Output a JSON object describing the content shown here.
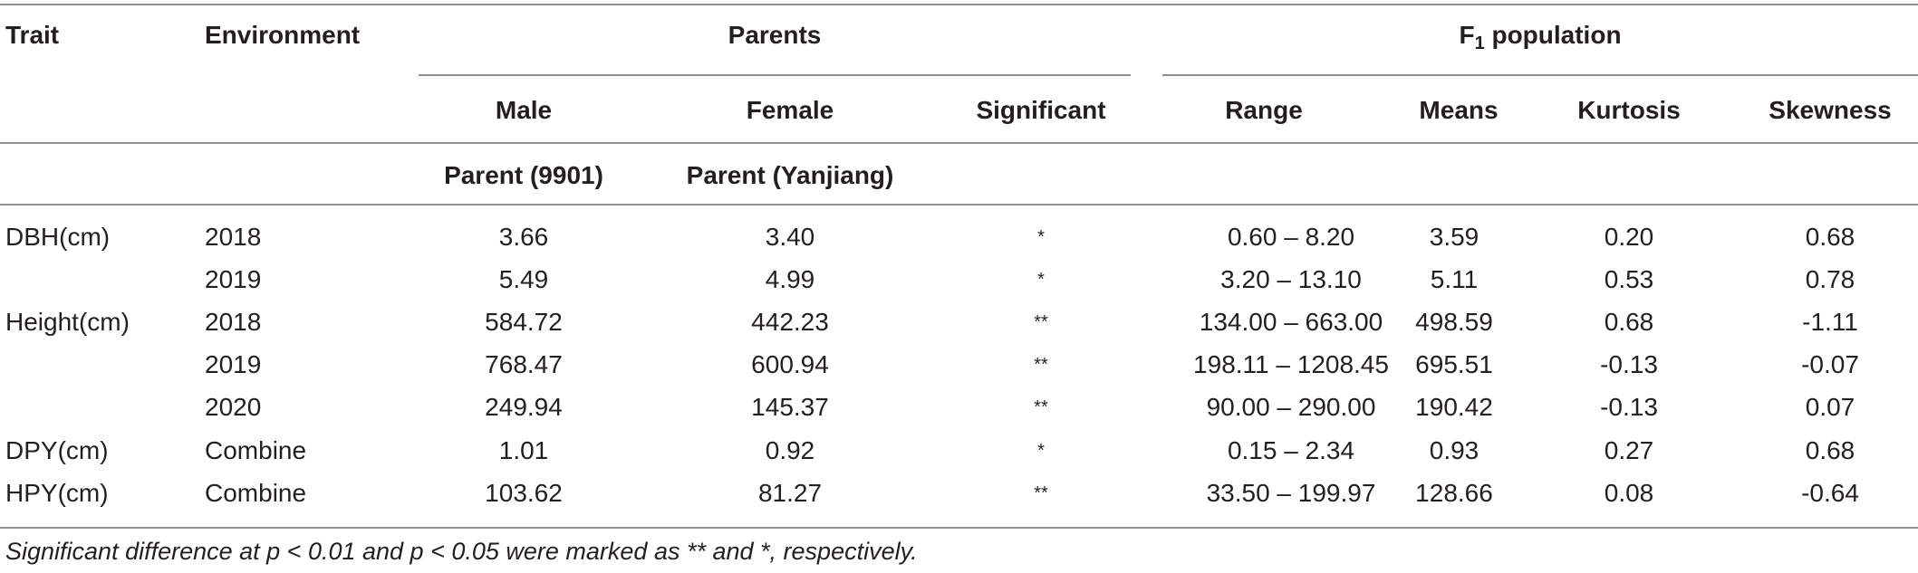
{
  "table": {
    "headers": {
      "trait": "Trait",
      "environment": "Environment",
      "parents": "Parents",
      "f1_prefix": "F",
      "f1_sub": "1",
      "f1_suffix": " population",
      "male": "Male",
      "female": "Female",
      "significant": "Significant",
      "range": "Range",
      "means": "Means",
      "kurtosis": "Kurtosis",
      "skewness": "Skewness",
      "male_sub": "Parent (9901)",
      "female_sub": "Parent (Yanjiang)"
    },
    "rows": [
      {
        "trait": "DBH(cm)",
        "env": "2018",
        "male": "3.66",
        "female": "3.40",
        "sig": "*",
        "range": "0.60 – 8.20",
        "means": "3.59",
        "kurt": "0.20",
        "skew": "0.68"
      },
      {
        "trait": "",
        "env": "2019",
        "male": "5.49",
        "female": "4.99",
        "sig": "*",
        "range": "3.20 – 13.10",
        "means": "5.11",
        "kurt": "0.53",
        "skew": "0.78"
      },
      {
        "trait": "Height(cm)",
        "env": "2018",
        "male": "584.72",
        "female": "442.23",
        "sig": "**",
        "range": "134.00 – 663.00",
        "means": "498.59",
        "kurt": "0.68",
        "skew": "-1.11"
      },
      {
        "trait": "",
        "env": "2019",
        "male": "768.47",
        "female": "600.94",
        "sig": "**",
        "range": "198.11 – 1208.45",
        "means": "695.51",
        "kurt": "-0.13",
        "skew": "-0.07"
      },
      {
        "trait": "",
        "env": "2020",
        "male": "249.94",
        "female": "145.37",
        "sig": "**",
        "range": "90.00 – 290.00",
        "means": "190.42",
        "kurt": "-0.13",
        "skew": "0.07"
      },
      {
        "trait": "DPY(cm)",
        "env": "Combine",
        "male": "1.01",
        "female": "0.92",
        "sig": "*",
        "range": "0.15 – 2.34",
        "means": "0.93",
        "kurt": "0.27",
        "skew": "0.68"
      },
      {
        "trait": "HPY(cm)",
        "env": "Combine",
        "male": "103.62",
        "female": "81.27",
        "sig": "**",
        "range": "33.50 – 199.97",
        "means": "128.66",
        "kurt": "0.08",
        "skew": "-0.64"
      }
    ],
    "footnote": "Significant difference at p < 0.01 and p < 0.05 were marked as ** and *, respectively."
  }
}
